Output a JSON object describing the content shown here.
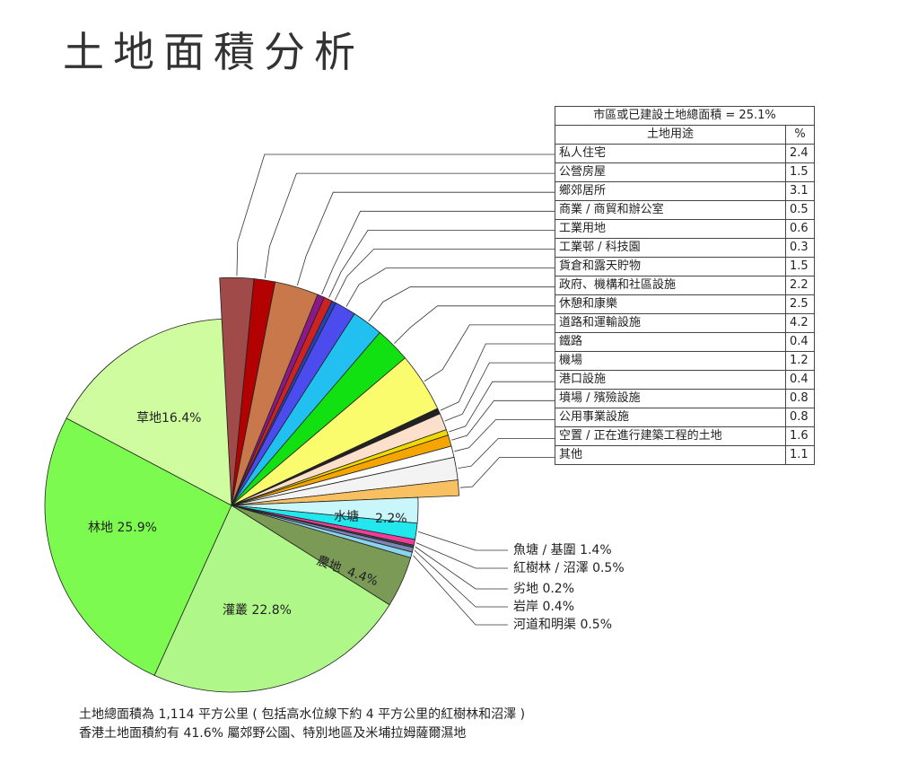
{
  "page": {
    "title": "土地面積分析"
  },
  "chart_data": {
    "type": "pie",
    "title": "土地面積分析",
    "slices": [
      {
        "label": "私人住宅",
        "value": 2.4,
        "color": "#a04a4a",
        "group": "built"
      },
      {
        "label": "公營房屋",
        "value": 1.5,
        "color": "#b30000",
        "group": "built"
      },
      {
        "label": "鄉郊居所",
        "value": 3.1,
        "color": "#c8784a",
        "group": "built"
      },
      {
        "label": "商業 / 商貿和辦公室",
        "value": 0.5,
        "color": "#8a1a8a",
        "group": "built"
      },
      {
        "label": "工業用地",
        "value": 0.6,
        "color": "#cc2222",
        "group": "built"
      },
      {
        "label": "工業邨 / 科技園",
        "value": 0.3,
        "color": "#2244bb",
        "group": "built"
      },
      {
        "label": "貨倉和露天貯物",
        "value": 1.5,
        "color": "#4b4bee",
        "group": "built"
      },
      {
        "label": "政府、機構和社區設施",
        "value": 2.2,
        "color": "#22c0f0",
        "group": "built"
      },
      {
        "label": "休憩和康樂",
        "value": 2.5,
        "color": "#11e011",
        "group": "built"
      },
      {
        "label": "道路和運輸設施",
        "value": 4.2,
        "color": "#fbfb6e",
        "group": "built"
      },
      {
        "label": "鐵路",
        "value": 0.4,
        "color": "#222222",
        "group": "built"
      },
      {
        "label": "機場",
        "value": 1.2,
        "color": "#fde0cc",
        "group": "built"
      },
      {
        "label": "港口設施",
        "value": 0.4,
        "color": "#f0d800",
        "group": "built"
      },
      {
        "label": "墳場 / 殯殮設施",
        "value": 0.8,
        "color": "#f5a500",
        "group": "built"
      },
      {
        "label": "公用事業設施",
        "value": 0.8,
        "color": "#ffffff",
        "group": "built"
      },
      {
        "label": "空置 / 正在進行建築工程的土地",
        "value": 1.6,
        "color": "#f3f3f3",
        "group": "built"
      },
      {
        "label": "其他",
        "value": 1.1,
        "color": "#f8c060",
        "group": "built"
      },
      {
        "label": "水塘",
        "value": 2.2,
        "color": "#c8f6fa",
        "group": "other"
      },
      {
        "label": "魚塘 / 基圍",
        "value": 1.4,
        "color": "#22e8ee",
        "group": "other"
      },
      {
        "label": "紅樹林 / 沼澤",
        "value": 0.5,
        "color": "#f03c9c",
        "group": "other"
      },
      {
        "label": "劣地",
        "value": 0.2,
        "color": "#444444",
        "group": "other"
      },
      {
        "label": "岩岸",
        "value": 0.4,
        "color": "#7a86b8",
        "group": "other"
      },
      {
        "label": "河道和明渠",
        "value": 0.5,
        "color": "#8ad4ec",
        "group": "other"
      },
      {
        "label": "農地",
        "value": 4.4,
        "color": "#7a9a56",
        "group": "other"
      },
      {
        "label": "灌叢",
        "value": 22.8,
        "color": "#b0f78a",
        "group": "other"
      },
      {
        "label": "林地",
        "value": 25.9,
        "color": "#7cfa50",
        "group": "other"
      },
      {
        "label": "草地",
        "value": 16.4,
        "color": "#d0fca0",
        "group": "other"
      }
    ],
    "slice_labels": {
      "reservoir": "水塘",
      "reservoir_value": "2.2%",
      "farmland": "農地",
      "farmland_value": "4.4%",
      "shrub": "灌叢 22.8%",
      "woodland": "林地 25.9%",
      "grassland": "草地16.4%"
    },
    "callouts": [
      "魚塘 / 基圍 1.4%",
      "紅樹林 / 沼澤 0.5%",
      "劣地 0.2%",
      "岩岸 0.4%",
      "河道和明渠 0.5%"
    ],
    "legend": {
      "header": "市區或已建設土地總面積 = 25.1%",
      "col_use": "土地用途",
      "col_pct": "%"
    },
    "footnotes": [
      "土地總面積為 1,114 平方公里 ( 包括高水位線下約 4 平方公里的紅樹林和沼澤 )",
      "香港土地面積約有 41.6% 屬郊野公園、特別地區及米埔拉姆薩爾濕地"
    ]
  }
}
